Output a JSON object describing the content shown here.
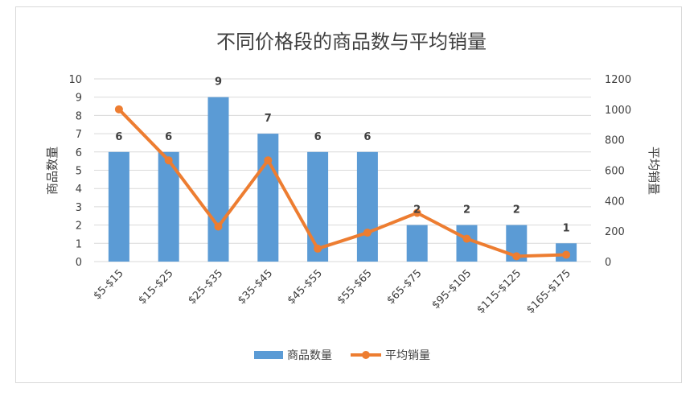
{
  "chart_data": {
    "type": "bar",
    "title": "不同价格段的商品数与平均销量",
    "categories": [
      "$5-$15",
      "$15-$25",
      "$25-$35",
      "$35-$45",
      "$45-$55",
      "$55-$65",
      "$65-$75",
      "$95-$105",
      "$115-$125",
      "$165-$175"
    ],
    "series": [
      {
        "name": "商品数量",
        "type": "bar",
        "axis": "left",
        "color": "#5B9BD5",
        "values": [
          6,
          6,
          9,
          7,
          6,
          6,
          2,
          2,
          2,
          1
        ],
        "data_labels": true
      },
      {
        "name": "平均销量",
        "type": "line",
        "axis": "right",
        "color": "#ED7D31",
        "values": [
          1000,
          665,
          230,
          665,
          85,
          190,
          320,
          150,
          35,
          45
        ],
        "data_labels": false
      }
    ],
    "ylabel": "商品数量",
    "y2label": "平均销量",
    "ylim": [
      0,
      10
    ],
    "y2lim": [
      0,
      1200
    ],
    "yticks": [
      "0",
      "1",
      "2",
      "3",
      "4",
      "5",
      "6",
      "7",
      "8",
      "9",
      "10"
    ],
    "y2ticks": [
      "0",
      "200",
      "400",
      "600",
      "800",
      "1000",
      "1200"
    ],
    "grid": true,
    "legend": "bottom"
  }
}
